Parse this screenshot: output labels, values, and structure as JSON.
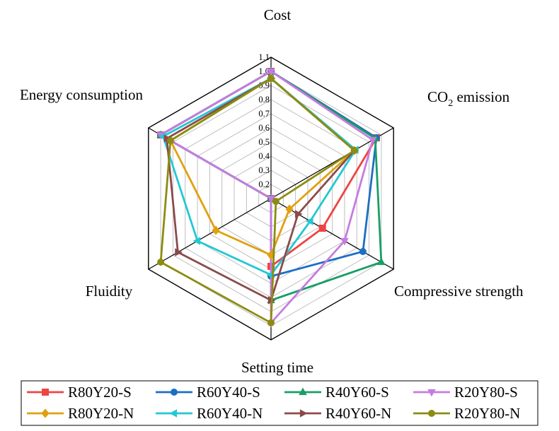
{
  "chart_data": {
    "type": "radar",
    "axes": [
      "Cost",
      "CO2 emission",
      "Compressive strength",
      "Setting time",
      "Fluidity",
      "Energy consumption"
    ],
    "axis_label_parts": {
      "cost": "Cost",
      "co2_prefix": "CO",
      "co2_sub": "2",
      "co2_suffix": " emission",
      "compressive": "Compressive strength",
      "setting": "Setting time",
      "fluidity": "Fluidity",
      "energy": "Energy consumption"
    },
    "rlim": [
      0.1,
      1.1
    ],
    "ticks": [
      "0.2",
      "0.3",
      "0.4",
      "0.5",
      "0.6",
      "0.7",
      "0.8",
      "0.9",
      "1.0",
      "1.1"
    ],
    "tick_values": [
      0.2,
      0.3,
      0.4,
      0.5,
      0.6,
      0.7,
      0.8,
      0.9,
      1.0,
      1.1
    ],
    "series": [
      {
        "name": "R80Y20-S",
        "color": "#ee4444",
        "marker": "square",
        "values": [
          1.0,
          0.96,
          0.52,
          0.58,
          0.1,
          1.0
        ]
      },
      {
        "name": "R60Y40-S",
        "color": "#1a6fc4",
        "marker": "circle",
        "values": [
          1.0,
          0.96,
          0.85,
          0.65,
          0.1,
          1.0
        ]
      },
      {
        "name": "R40Y60-S",
        "color": "#1a9e66",
        "marker": "triangle-up",
        "values": [
          1.0,
          0.95,
          1.0,
          0.82,
          0.1,
          1.0
        ]
      },
      {
        "name": "R20Y80-S",
        "color": "#c67be0",
        "marker": "triangle-down",
        "values": [
          1.0,
          0.93,
          0.7,
          0.98,
          0.1,
          1.0
        ]
      },
      {
        "name": "R80Y20-N",
        "color": "#e0a010",
        "marker": "diamond",
        "values": [
          0.95,
          0.78,
          0.25,
          0.5,
          0.55,
          0.92
        ]
      },
      {
        "name": "R60Y40-N",
        "color": "#22c8d2",
        "marker": "triangle-left",
        "values": [
          0.95,
          0.79,
          0.42,
          0.64,
          0.7,
          0.98
        ]
      },
      {
        "name": "R40Y60-N",
        "color": "#8b4a4a",
        "marker": "triangle-right",
        "values": [
          0.95,
          0.78,
          0.32,
          0.82,
          0.86,
          0.95
        ]
      },
      {
        "name": "R20Y80-N",
        "color": "#8c8c10",
        "marker": "circle",
        "values": [
          0.95,
          0.78,
          0.14,
          0.98,
          1.0,
          0.92
        ]
      }
    ]
  }
}
